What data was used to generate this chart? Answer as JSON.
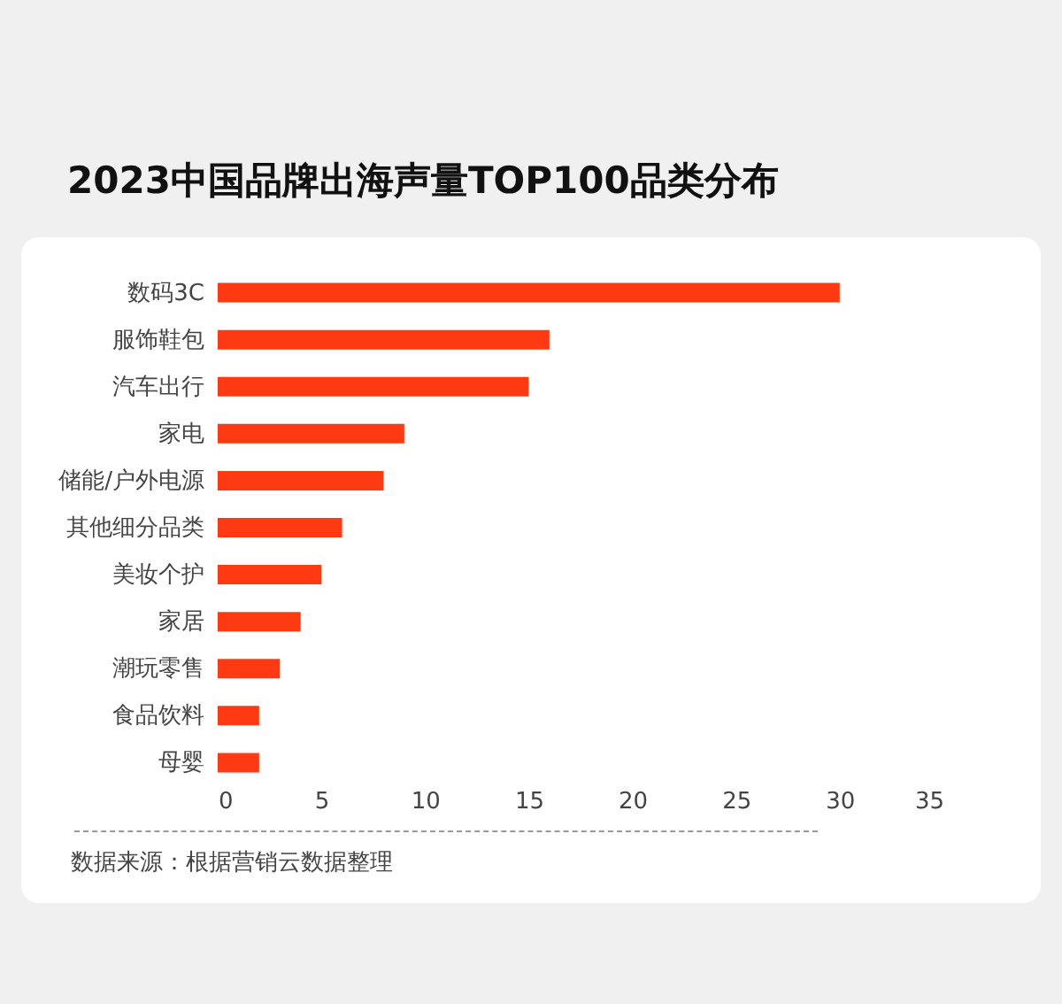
{
  "chart_data": {
    "type": "bar",
    "orientation": "horizontal",
    "title": "2023中国品牌出海声量TOP100品类分布",
    "categories": [
      "数码3C",
      "服饰鞋包",
      "汽车出行",
      "家电",
      "储能/户外电源",
      "其他细分品类",
      "美妆个护",
      "家居",
      "潮玩零售",
      "食品饮料",
      "母婴"
    ],
    "values": [
      30,
      16,
      15,
      9,
      8,
      6,
      5,
      4,
      3,
      2,
      2
    ],
    "color": "#ff3a12",
    "xlim": [
      0,
      35
    ],
    "xticks": [
      0,
      5,
      10,
      15,
      20,
      25,
      30,
      35
    ],
    "grid": false,
    "annotations": [
      "数据来源：根据营销云数据整理"
    ]
  }
}
